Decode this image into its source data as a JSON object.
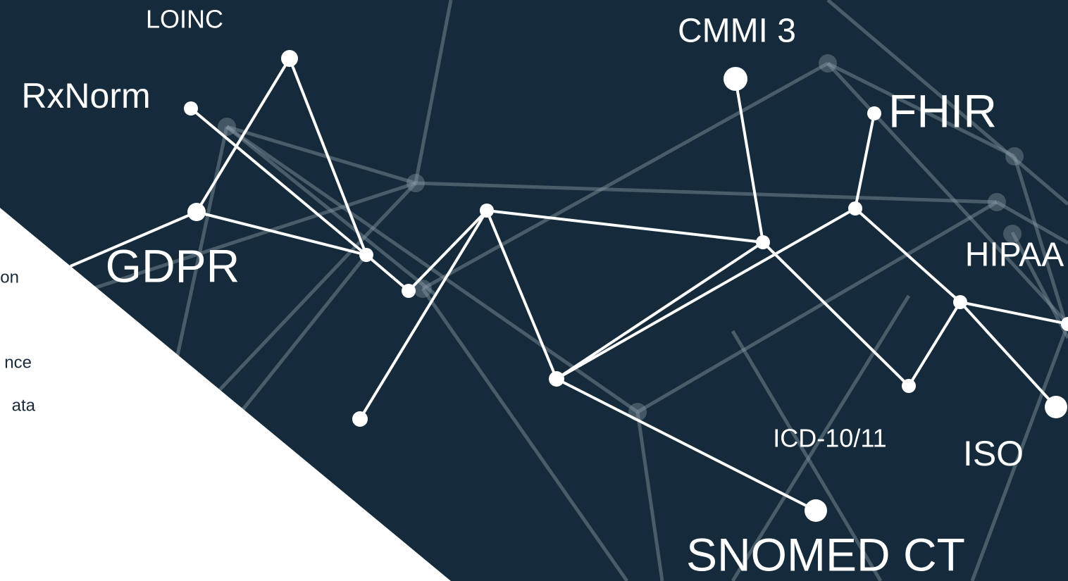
{
  "labels": [
    "LOINC",
    "CMMI 3",
    "RxNorm",
    "FHIR",
    "GDPR",
    "HIPAA",
    "ICD-10/11",
    "ISO",
    "SNOMED CT"
  ],
  "cut_texts": [
    "on",
    "nce",
    "ata"
  ]
}
